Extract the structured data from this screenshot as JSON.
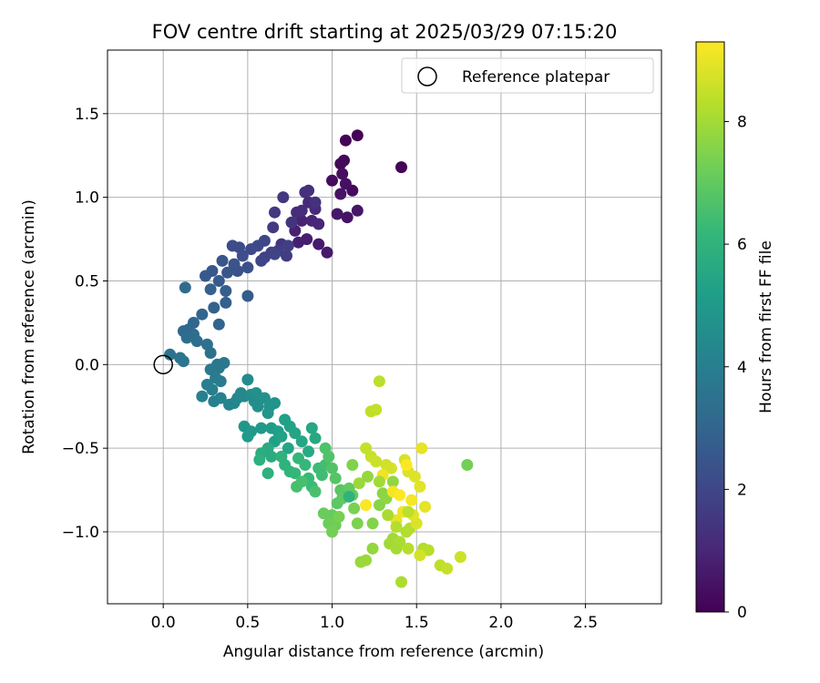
{
  "chart_data": {
    "type": "scatter",
    "title": "FOV centre drift starting at 2025/03/29 07:15:20",
    "xlabel": "Angular distance from reference (arcmin)",
    "ylabel": "Rotation from reference (arcmin)",
    "xlim": [
      -0.33,
      2.95
    ],
    "ylim": [
      -1.43,
      1.88
    ],
    "xticks": [
      0.0,
      0.5,
      1.0,
      1.5,
      2.0,
      2.5
    ],
    "xtick_labels": [
      "0.0",
      "0.5",
      "1.0",
      "1.5",
      "2.0",
      "2.5"
    ],
    "yticks": [
      -1.0,
      -0.5,
      0.0,
      0.5,
      1.0,
      1.5
    ],
    "ytick_labels": [
      "−1.0",
      "−0.5",
      "0.0",
      "0.5",
      "1.0",
      "1.5"
    ],
    "grid": true,
    "legend": {
      "placement": "top-right",
      "entries": [
        {
          "label": "Reference platepar",
          "marker": "open-circle"
        }
      ]
    },
    "reference_point": {
      "x": 0.0,
      "y": 0.0,
      "label": "Reference platepar"
    },
    "colorbar": {
      "label": "Hours from first FF file",
      "min": 0,
      "max": 9.3,
      "ticks": [
        0,
        2,
        4,
        6,
        8
      ],
      "tick_labels": [
        "0",
        "2",
        "4",
        "6",
        "8"
      ],
      "colormap": "viridis",
      "colors": [
        "#440154",
        "#482878",
        "#3e4989",
        "#31688e",
        "#26828e",
        "#1f9e89",
        "#35b779",
        "#6ece58",
        "#b5de2b",
        "#fde725"
      ]
    },
    "points": [
      [
        1.15,
        1.37,
        0.05
      ],
      [
        1.08,
        1.34,
        0.1
      ],
      [
        1.05,
        1.2,
        0.15
      ],
      [
        1.07,
        1.22,
        0.2
      ],
      [
        1.41,
        1.18,
        0.1
      ],
      [
        1.12,
        1.04,
        0.25
      ],
      [
        1.0,
        1.1,
        0.3
      ],
      [
        1.06,
        1.14,
        0.35
      ],
      [
        1.08,
        1.08,
        0.4
      ],
      [
        1.05,
        1.02,
        0.45
      ],
      [
        1.09,
        0.88,
        0.5
      ],
      [
        1.15,
        0.92,
        0.55
      ],
      [
        1.03,
        0.9,
        0.6
      ],
      [
        0.97,
        0.67,
        0.65
      ],
      [
        0.92,
        0.72,
        0.7
      ],
      [
        0.85,
        0.75,
        0.75
      ],
      [
        0.8,
        0.73,
        0.8
      ],
      [
        0.78,
        0.8,
        0.85
      ],
      [
        0.82,
        0.86,
        0.9
      ],
      [
        0.88,
        0.86,
        0.95
      ],
      [
        0.92,
        0.84,
        1.0
      ],
      [
        0.86,
        0.97,
        1.05
      ],
      [
        0.9,
        0.93,
        1.1
      ],
      [
        0.82,
        0.92,
        1.15
      ],
      [
        0.79,
        0.91,
        1.2
      ],
      [
        0.84,
        1.03,
        1.25
      ],
      [
        0.86,
        1.04,
        1.3
      ],
      [
        0.9,
        0.97,
        1.35
      ],
      [
        0.76,
        0.85,
        1.4
      ],
      [
        0.7,
        0.72,
        1.45
      ],
      [
        0.71,
        1.0,
        1.5
      ],
      [
        0.66,
        0.91,
        1.55
      ],
      [
        0.65,
        0.82,
        1.6
      ],
      [
        0.73,
        0.65,
        1.65
      ],
      [
        0.68,
        0.68,
        1.7
      ],
      [
        0.74,
        0.71,
        1.75
      ],
      [
        0.64,
        0.67,
        1.8
      ],
      [
        0.6,
        0.64,
        1.85
      ],
      [
        0.66,
        0.66,
        1.9
      ],
      [
        0.58,
        0.62,
        1.95
      ],
      [
        0.6,
        0.74,
        2.0
      ],
      [
        0.56,
        0.71,
        2.05
      ],
      [
        0.52,
        0.69,
        2.1
      ],
      [
        0.45,
        0.7,
        2.15
      ],
      [
        0.41,
        0.71,
        2.2
      ],
      [
        0.47,
        0.65,
        2.25
      ],
      [
        0.5,
        0.58,
        2.3
      ],
      [
        0.44,
        0.56,
        2.35
      ],
      [
        0.42,
        0.6,
        2.4
      ],
      [
        0.38,
        0.55,
        2.45
      ],
      [
        0.35,
        0.62,
        2.5
      ],
      [
        0.29,
        0.56,
        2.55
      ],
      [
        0.25,
        0.53,
        2.6
      ],
      [
        0.33,
        0.5,
        2.65
      ],
      [
        0.5,
        0.41,
        2.7
      ],
      [
        0.37,
        0.44,
        2.75
      ],
      [
        0.37,
        0.37,
        2.8
      ],
      [
        0.28,
        0.45,
        2.85
      ],
      [
        0.3,
        0.34,
        2.9
      ],
      [
        0.33,
        0.24,
        2.95
      ],
      [
        0.23,
        0.3,
        3.0
      ],
      [
        0.18,
        0.25,
        3.05
      ],
      [
        0.15,
        0.21,
        3.1
      ],
      [
        0.12,
        0.2,
        3.15
      ],
      [
        0.13,
        0.46,
        3.2
      ],
      [
        0.18,
        0.18,
        3.25
      ],
      [
        0.14,
        0.16,
        3.3
      ],
      [
        0.2,
        0.14,
        3.35
      ],
      [
        0.26,
        0.12,
        3.4
      ],
      [
        0.28,
        0.07,
        3.45
      ],
      [
        0.04,
        0.06,
        3.5
      ],
      [
        0.1,
        0.04,
        3.55
      ],
      [
        0.12,
        0.02,
        3.6
      ],
      [
        0.32,
        0.0,
        3.65
      ],
      [
        0.36,
        0.01,
        3.7
      ],
      [
        0.33,
        -0.02,
        3.75
      ],
      [
        0.28,
        -0.03,
        3.8
      ],
      [
        0.31,
        -0.08,
        3.85
      ],
      [
        0.34,
        -0.1,
        3.9
      ],
      [
        0.26,
        -0.12,
        3.95
      ],
      [
        0.29,
        -0.15,
        4.0
      ],
      [
        0.23,
        -0.19,
        4.05
      ],
      [
        0.3,
        -0.22,
        4.1
      ],
      [
        0.34,
        -0.2,
        4.15
      ],
      [
        0.39,
        -0.24,
        4.2
      ],
      [
        0.42,
        -0.23,
        4.25
      ],
      [
        0.44,
        -0.2,
        4.3
      ],
      [
        0.46,
        -0.17,
        4.35
      ],
      [
        0.48,
        -0.19,
        4.4
      ],
      [
        0.5,
        -0.09,
        4.45
      ],
      [
        0.52,
        -0.18,
        4.5
      ],
      [
        0.54,
        -0.22,
        4.55
      ],
      [
        0.56,
        -0.25,
        4.6
      ],
      [
        0.55,
        -0.17,
        4.65
      ],
      [
        0.6,
        -0.2,
        4.7
      ],
      [
        0.63,
        -0.25,
        4.75
      ],
      [
        0.66,
        -0.23,
        4.8
      ],
      [
        0.62,
        -0.29,
        4.85
      ],
      [
        0.48,
        -0.37,
        4.9
      ],
      [
        0.52,
        -0.4,
        4.95
      ],
      [
        0.58,
        -0.38,
        5.0
      ],
      [
        0.5,
        -0.43,
        5.05
      ],
      [
        0.64,
        -0.38,
        5.1
      ],
      [
        0.68,
        -0.4,
        5.15
      ],
      [
        0.66,
        -0.46,
        5.2
      ],
      [
        0.72,
        -0.33,
        5.25
      ],
      [
        0.75,
        -0.37,
        5.3
      ],
      [
        0.7,
        -0.43,
        5.35
      ],
      [
        0.78,
        -0.41,
        5.4
      ],
      [
        0.74,
        -0.5,
        5.45
      ],
      [
        0.82,
        -0.46,
        5.5
      ],
      [
        0.88,
        -0.38,
        5.55
      ],
      [
        0.9,
        -0.44,
        5.6
      ],
      [
        0.86,
        -0.52,
        5.65
      ],
      [
        0.62,
        -0.5,
        5.7
      ],
      [
        0.64,
        -0.55,
        5.75
      ],
      [
        0.58,
        -0.53,
        5.8
      ],
      [
        0.57,
        -0.57,
        5.85
      ],
      [
        0.62,
        -0.65,
        5.9
      ],
      [
        0.7,
        -0.55,
        5.95
      ],
      [
        0.72,
        -0.6,
        6.0
      ],
      [
        0.75,
        -0.64,
        6.05
      ],
      [
        0.8,
        -0.56,
        6.1
      ],
      [
        0.78,
        -0.65,
        6.15
      ],
      [
        0.84,
        -0.6,
        6.2
      ],
      [
        0.86,
        -0.68,
        6.25
      ],
      [
        0.88,
        -0.73,
        6.3
      ],
      [
        0.92,
        -0.62,
        6.35
      ],
      [
        0.94,
        -0.66,
        6.4
      ],
      [
        0.96,
        -0.6,
        6.45
      ],
      [
        0.79,
        -0.73,
        6.5
      ],
      [
        0.82,
        -0.7,
        6.55
      ],
      [
        0.9,
        -0.76,
        6.6
      ],
      [
        0.96,
        -0.5,
        6.65
      ],
      [
        0.98,
        -0.55,
        6.7
      ],
      [
        1.0,
        -0.62,
        6.75
      ],
      [
        1.02,
        -0.68,
        6.8
      ],
      [
        1.05,
        -0.75,
        6.85
      ],
      [
        1.03,
        -0.83,
        6.9
      ],
      [
        1.06,
        -0.8,
        6.95
      ],
      [
        1.1,
        -0.74,
        7.0
      ],
      [
        1.12,
        -0.78,
        7.05
      ],
      [
        1.0,
        -0.9,
        7.1
      ],
      [
        0.95,
        -0.89,
        7.15
      ],
      [
        0.98,
        -0.95,
        7.2
      ],
      [
        1.02,
        -0.96,
        7.25
      ],
      [
        1.0,
        -1.0,
        7.3
      ],
      [
        1.04,
        -0.91,
        7.35
      ],
      [
        1.13,
        -0.86,
        7.4
      ],
      [
        1.15,
        -0.95,
        7.45
      ],
      [
        1.12,
        -0.6,
        7.5
      ],
      [
        1.24,
        -0.95,
        7.55
      ],
      [
        1.28,
        -0.84,
        7.6
      ],
      [
        1.3,
        -0.77,
        7.65
      ],
      [
        1.32,
        -0.8,
        7.7
      ],
      [
        1.36,
        -0.7,
        7.75
      ],
      [
        1.24,
        -1.1,
        7.8
      ],
      [
        1.17,
        -1.18,
        7.85
      ],
      [
        1.2,
        -1.17,
        7.9
      ],
      [
        1.34,
        -1.07,
        7.95
      ],
      [
        1.36,
        -1.04,
        8.0
      ],
      [
        1.38,
        -1.1,
        8.05
      ],
      [
        1.4,
        -1.06,
        8.1
      ],
      [
        1.41,
        -1.3,
        8.15
      ],
      [
        1.44,
        -1.0,
        8.2
      ],
      [
        1.46,
        -0.98,
        8.25
      ],
      [
        1.45,
        -1.1,
        8.3
      ],
      [
        1.28,
        -0.1,
        8.35
      ],
      [
        1.23,
        -0.28,
        8.4
      ],
      [
        1.26,
        -0.27,
        8.45
      ],
      [
        1.2,
        -0.5,
        8.5
      ],
      [
        1.23,
        -0.55,
        8.55
      ],
      [
        1.26,
        -0.58,
        8.6
      ],
      [
        1.32,
        -0.6,
        8.65
      ],
      [
        1.35,
        -0.62,
        8.7
      ],
      [
        1.43,
        -0.57,
        8.75
      ],
      [
        1.45,
        -0.64,
        8.8
      ],
      [
        1.49,
        -0.67,
        8.85
      ],
      [
        1.52,
        -0.73,
        8.9
      ],
      [
        1.53,
        -0.5,
        8.95
      ],
      [
        1.8,
        -0.6,
        7.3
      ],
      [
        1.54,
        -1.1,
        8.2
      ],
      [
        1.57,
        -1.11,
        8.3
      ],
      [
        1.64,
        -1.2,
        8.4
      ],
      [
        1.68,
        -1.22,
        8.5
      ],
      [
        1.76,
        -1.15,
        8.6
      ],
      [
        1.52,
        -1.14,
        8.7
      ],
      [
        1.5,
        -0.95,
        8.8
      ],
      [
        1.48,
        -0.9,
        8.9
      ],
      [
        1.55,
        -0.85,
        8.95
      ],
      [
        1.38,
        -0.93,
        9.0
      ],
      [
        1.42,
        -0.88,
        9.05
      ],
      [
        1.3,
        -0.66,
        9.1
      ],
      [
        1.36,
        -0.76,
        9.15
      ],
      [
        1.47,
        -0.81,
        9.2
      ],
      [
        1.2,
        -0.84,
        9.25
      ],
      [
        1.4,
        -0.78,
        9.28
      ],
      [
        1.44,
        -0.6,
        9.3
      ],
      [
        1.1,
        -0.79,
        6.0
      ],
      [
        1.21,
        -0.67,
        7.8
      ],
      [
        1.16,
        -0.71,
        7.9
      ],
      [
        1.28,
        -0.7,
        8.0
      ],
      [
        1.33,
        -0.9,
        8.1
      ],
      [
        1.38,
        -0.97,
        8.25
      ],
      [
        1.45,
        -0.88,
        8.35
      ]
    ]
  }
}
